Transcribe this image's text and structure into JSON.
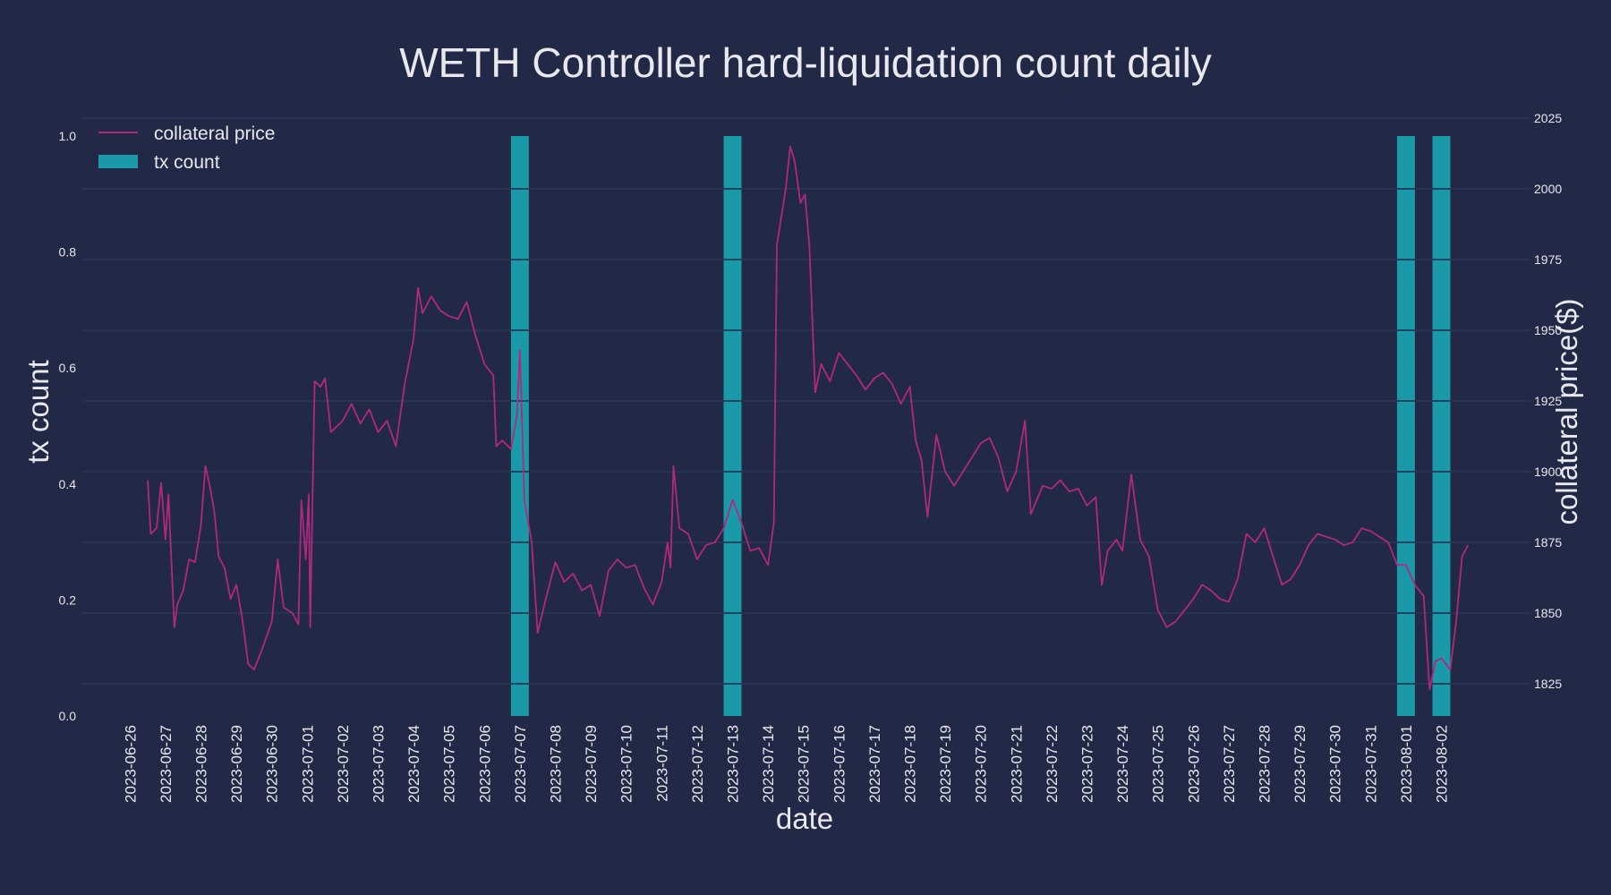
{
  "chart_data": {
    "type": "bar",
    "title": "WETH Controller hard-liquidation count daily",
    "xlabel": "date",
    "ylabel": "tx count",
    "y2label": "collateral price($)",
    "colors": {
      "background": "#212946",
      "bar": "#1a9aa8",
      "line": "#b0297e",
      "grid": "#2e3a5c",
      "text": "#e8e8ee"
    },
    "legend": {
      "placement": "top-left",
      "entries": [
        {
          "label": "collateral price",
          "kind": "line"
        },
        {
          "label": "tx count",
          "kind": "bar"
        }
      ]
    },
    "grid": true,
    "ylim": [
      0,
      1.0
    ],
    "y_ticks": [
      0.0,
      0.2,
      0.4,
      0.6,
      0.8,
      1.0
    ],
    "y2lim": [
      1814,
      2025
    ],
    "y2_ticks": [
      1825,
      1850,
      1875,
      1900,
      1925,
      1950,
      1975,
      2000,
      2025
    ],
    "dates": [
      "2023-06-26",
      "2023-06-27",
      "2023-06-28",
      "2023-06-29",
      "2023-06-30",
      "2023-07-01",
      "2023-07-02",
      "2023-07-03",
      "2023-07-04",
      "2023-07-05",
      "2023-07-06",
      "2023-07-07",
      "2023-07-08",
      "2023-07-09",
      "2023-07-10",
      "2023-07-11",
      "2023-07-12",
      "2023-07-13",
      "2023-07-14",
      "2023-07-15",
      "2023-07-16",
      "2023-07-17",
      "2023-07-18",
      "2023-07-19",
      "2023-07-20",
      "2023-07-21",
      "2023-07-22",
      "2023-07-23",
      "2023-07-24",
      "2023-07-25",
      "2023-07-26",
      "2023-07-27",
      "2023-07-28",
      "2023-07-29",
      "2023-07-30",
      "2023-07-31",
      "2023-08-01",
      "2023-08-02"
    ],
    "series": [
      {
        "name": "tx count",
        "type": "bar",
        "values": [
          {
            "date": "2023-07-07",
            "value": 1
          },
          {
            "date": "2023-07-13",
            "value": 1
          },
          {
            "date": "2023-08-01",
            "value": 1
          },
          {
            "date": "2023-08-02",
            "value": 1
          }
        ]
      },
      {
        "name": "collateral price",
        "type": "line",
        "axis": "right",
        "points": [
          [
            "2023-06-26 12:00",
            1897
          ],
          [
            "2023-06-26 14:00",
            1878
          ],
          [
            "2023-06-26 18:00",
            1880
          ],
          [
            "2023-06-26 21:00",
            1896
          ],
          [
            "2023-06-27 00:00",
            1876
          ],
          [
            "2023-06-27 02:00",
            1892
          ],
          [
            "2023-06-27 06:00",
            1845
          ],
          [
            "2023-06-27 08:00",
            1853
          ],
          [
            "2023-06-27 12:00",
            1858
          ],
          [
            "2023-06-27 16:00",
            1869
          ],
          [
            "2023-06-27 20:00",
            1868
          ],
          [
            "2023-06-28 00:00",
            1881
          ],
          [
            "2023-06-28 03:00",
            1902
          ],
          [
            "2023-06-28 06:00",
            1895
          ],
          [
            "2023-06-28 09:00",
            1886
          ],
          [
            "2023-06-28 12:00",
            1870
          ],
          [
            "2023-06-28 16:00",
            1866
          ],
          [
            "2023-06-28 20:00",
            1855
          ],
          [
            "2023-06-29 00:00",
            1860
          ],
          [
            "2023-06-29 04:00",
            1848
          ],
          [
            "2023-06-29 08:00",
            1832
          ],
          [
            "2023-06-29 12:00",
            1830
          ],
          [
            "2023-06-29 18:00",
            1838
          ],
          [
            "2023-06-30 00:00",
            1847
          ],
          [
            "2023-06-30 04:00",
            1869
          ],
          [
            "2023-06-30 08:00",
            1852
          ],
          [
            "2023-06-30 14:00",
            1850
          ],
          [
            "2023-06-30 18:00",
            1846
          ],
          [
            "2023-06-30 20:00",
            1890
          ],
          [
            "2023-06-30 23:00",
            1869
          ],
          [
            "2023-07-01 01:00",
            1892
          ],
          [
            "2023-07-01 02:00",
            1845
          ],
          [
            "2023-07-01 05:00",
            1932
          ],
          [
            "2023-07-01 09:00",
            1930
          ],
          [
            "2023-07-01 12:00",
            1933
          ],
          [
            "2023-07-01 16:00",
            1914
          ],
          [
            "2023-07-02 00:00",
            1918
          ],
          [
            "2023-07-02 06:00",
            1924
          ],
          [
            "2023-07-02 12:00",
            1917
          ],
          [
            "2023-07-02 18:00",
            1922
          ],
          [
            "2023-07-03 00:00",
            1914
          ],
          [
            "2023-07-03 06:00",
            1918
          ],
          [
            "2023-07-03 12:00",
            1909
          ],
          [
            "2023-07-03 18:00",
            1931
          ],
          [
            "2023-07-04 00:00",
            1947
          ],
          [
            "2023-07-04 03:00",
            1965
          ],
          [
            "2023-07-04 06:00",
            1956
          ],
          [
            "2023-07-04 12:00",
            1962
          ],
          [
            "2023-07-04 18:00",
            1957
          ],
          [
            "2023-07-05 00:00",
            1955
          ],
          [
            "2023-07-05 06:00",
            1954
          ],
          [
            "2023-07-05 12:00",
            1960
          ],
          [
            "2023-07-05 18:00",
            1948
          ],
          [
            "2023-07-06 00:00",
            1938
          ],
          [
            "2023-07-06 06:00",
            1934
          ],
          [
            "2023-07-06 08:00",
            1909
          ],
          [
            "2023-07-06 12:00",
            1911
          ],
          [
            "2023-07-06 18:00",
            1908
          ],
          [
            "2023-07-06 22:00",
            1920
          ],
          [
            "2023-07-07 00:00",
            1943
          ],
          [
            "2023-07-07 03:00",
            1890
          ],
          [
            "2023-07-07 08:00",
            1875
          ],
          [
            "2023-07-07 12:00",
            1843
          ],
          [
            "2023-07-07 18:00",
            1856
          ],
          [
            "2023-07-08 00:00",
            1868
          ],
          [
            "2023-07-08 06:00",
            1861
          ],
          [
            "2023-07-08 12:00",
            1864
          ],
          [
            "2023-07-08 18:00",
            1858
          ],
          [
            "2023-07-09 00:00",
            1860
          ],
          [
            "2023-07-09 06:00",
            1849
          ],
          [
            "2023-07-09 12:00",
            1865
          ],
          [
            "2023-07-09 18:00",
            1869
          ],
          [
            "2023-07-10 00:00",
            1866
          ],
          [
            "2023-07-10 06:00",
            1867
          ],
          [
            "2023-07-10 12:00",
            1859
          ],
          [
            "2023-07-10 18:00",
            1853
          ],
          [
            "2023-07-11 00:00",
            1861
          ],
          [
            "2023-07-11 04:00",
            1875
          ],
          [
            "2023-07-11 06:00",
            1866
          ],
          [
            "2023-07-11 08:00",
            1902
          ],
          [
            "2023-07-11 12:00",
            1880
          ],
          [
            "2023-07-11 18:00",
            1878
          ],
          [
            "2023-07-12 00:00",
            1869
          ],
          [
            "2023-07-12 06:00",
            1874
          ],
          [
            "2023-07-12 12:00",
            1875
          ],
          [
            "2023-07-12 18:00",
            1880
          ],
          [
            "2023-07-13 00:00",
            1890
          ],
          [
            "2023-07-13 06:00",
            1882
          ],
          [
            "2023-07-13 12:00",
            1872
          ],
          [
            "2023-07-13 18:00",
            1873
          ],
          [
            "2023-07-14 00:00",
            1867
          ],
          [
            "2023-07-14 04:00",
            1882
          ],
          [
            "2023-07-14 06:00",
            1980
          ],
          [
            "2023-07-14 12:00",
            2000
          ],
          [
            "2023-07-14 15:00",
            2015
          ],
          [
            "2023-07-14 18:00",
            2010
          ],
          [
            "2023-07-14 22:00",
            1995
          ],
          [
            "2023-07-15 01:00",
            1998
          ],
          [
            "2023-07-15 04:00",
            1980
          ],
          [
            "2023-07-15 08:00",
            1928
          ],
          [
            "2023-07-15 12:00",
            1938
          ],
          [
            "2023-07-15 18:00",
            1932
          ],
          [
            "2023-07-16 00:00",
            1942
          ],
          [
            "2023-07-16 06:00",
            1938
          ],
          [
            "2023-07-16 12:00",
            1934
          ],
          [
            "2023-07-16 18:00",
            1929
          ],
          [
            "2023-07-17 00:00",
            1933
          ],
          [
            "2023-07-17 06:00",
            1935
          ],
          [
            "2023-07-17 12:00",
            1931
          ],
          [
            "2023-07-17 18:00",
            1924
          ],
          [
            "2023-07-18 00:00",
            1930
          ],
          [
            "2023-07-18 04:00",
            1911
          ],
          [
            "2023-07-18 08:00",
            1904
          ],
          [
            "2023-07-18 12:00",
            1884
          ],
          [
            "2023-07-18 18:00",
            1913
          ],
          [
            "2023-07-19 00:00",
            1900
          ],
          [
            "2023-07-19 06:00",
            1895
          ],
          [
            "2023-07-19 12:00",
            1900
          ],
          [
            "2023-07-19 18:00",
            1905
          ],
          [
            "2023-07-20 00:00",
            1910
          ],
          [
            "2023-07-20 06:00",
            1912
          ],
          [
            "2023-07-20 12:00",
            1905
          ],
          [
            "2023-07-20 18:00",
            1893
          ],
          [
            "2023-07-21 00:00",
            1900
          ],
          [
            "2023-07-21 06:00",
            1918
          ],
          [
            "2023-07-21 10:00",
            1885
          ],
          [
            "2023-07-21 18:00",
            1895
          ],
          [
            "2023-07-22 00:00",
            1894
          ],
          [
            "2023-07-22 06:00",
            1897
          ],
          [
            "2023-07-22 12:00",
            1893
          ],
          [
            "2023-07-22 18:00",
            1894
          ],
          [
            "2023-07-23 00:00",
            1888
          ],
          [
            "2023-07-23 06:00",
            1891
          ],
          [
            "2023-07-23 10:00",
            1860
          ],
          [
            "2023-07-23 14:00",
            1872
          ],
          [
            "2023-07-23 20:00",
            1876
          ],
          [
            "2023-07-24 00:00",
            1872
          ],
          [
            "2023-07-24 06:00",
            1899
          ],
          [
            "2023-07-24 12:00",
            1876
          ],
          [
            "2023-07-24 18:00",
            1870
          ],
          [
            "2023-07-25 00:00",
            1851
          ],
          [
            "2023-07-25 06:00",
            1845
          ],
          [
            "2023-07-25 12:00",
            1847
          ],
          [
            "2023-07-25 18:00",
            1851
          ],
          [
            "2023-07-26 00:00",
            1855
          ],
          [
            "2023-07-26 06:00",
            1860
          ],
          [
            "2023-07-26 12:00",
            1858
          ],
          [
            "2023-07-26 18:00",
            1855
          ],
          [
            "2023-07-27 00:00",
            1854
          ],
          [
            "2023-07-27 06:00",
            1862
          ],
          [
            "2023-07-27 12:00",
            1878
          ],
          [
            "2023-07-27 18:00",
            1875
          ],
          [
            "2023-07-28 00:00",
            1880
          ],
          [
            "2023-07-28 06:00",
            1870
          ],
          [
            "2023-07-28 12:00",
            1860
          ],
          [
            "2023-07-28 18:00",
            1862
          ],
          [
            "2023-07-29 00:00",
            1867
          ],
          [
            "2023-07-29 06:00",
            1874
          ],
          [
            "2023-07-29 12:00",
            1878
          ],
          [
            "2023-07-29 18:00",
            1877
          ],
          [
            "2023-07-30 00:00",
            1876
          ],
          [
            "2023-07-30 06:00",
            1874
          ],
          [
            "2023-07-30 12:00",
            1875
          ],
          [
            "2023-07-30 18:00",
            1880
          ],
          [
            "2023-07-31 00:00",
            1879
          ],
          [
            "2023-07-31 06:00",
            1877
          ],
          [
            "2023-07-31 12:00",
            1875
          ],
          [
            "2023-07-31 18:00",
            1867
          ],
          [
            "2023-08-01 00:00",
            1867
          ],
          [
            "2023-08-01 06:00",
            1860
          ],
          [
            "2023-08-01 12:00",
            1856
          ],
          [
            "2023-08-01 16:00",
            1823
          ],
          [
            "2023-08-01 20:00",
            1833
          ],
          [
            "2023-08-02 00:00",
            1834
          ],
          [
            "2023-08-02 06:00",
            1830
          ],
          [
            "2023-08-02 10:00",
            1847
          ],
          [
            "2023-08-02 14:00",
            1870
          ],
          [
            "2023-08-02 18:00",
            1874
          ]
        ]
      }
    ]
  }
}
